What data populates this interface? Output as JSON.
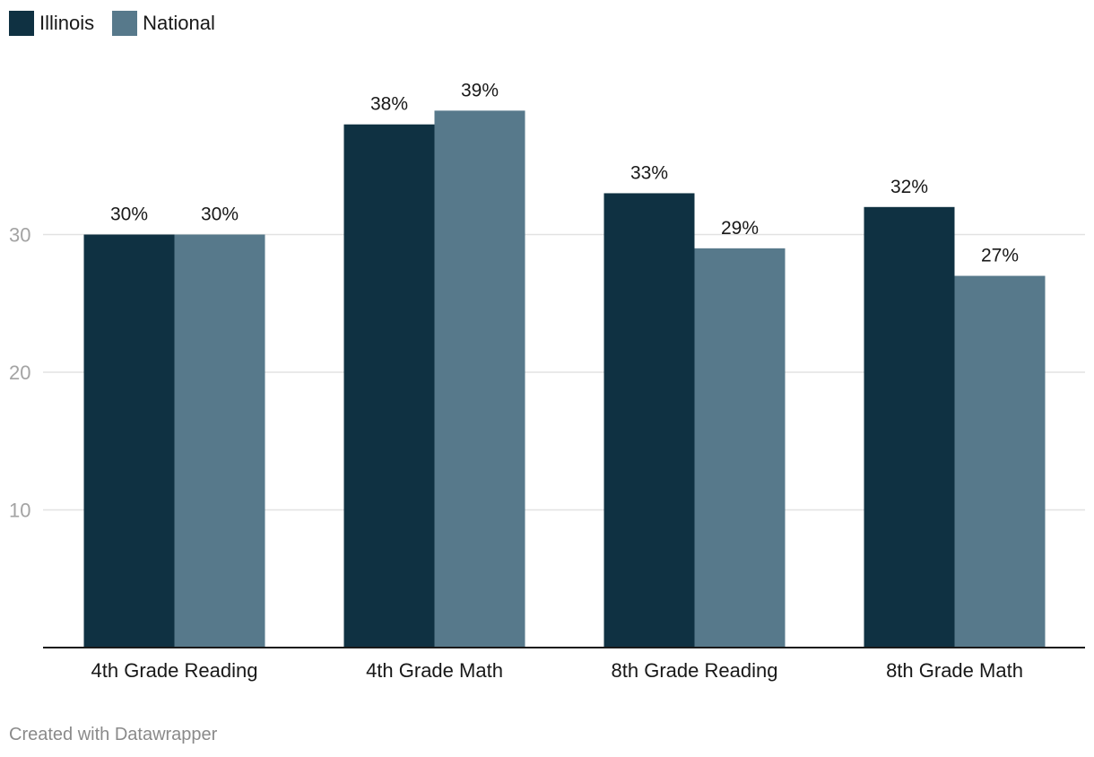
{
  "chart_data": {
    "type": "bar",
    "title": "",
    "xlabel": "",
    "ylabel": "",
    "categories": [
      "4th Grade Reading",
      "4th Grade Math",
      "8th Grade Reading",
      "8th Grade Math"
    ],
    "series": [
      {
        "name": "Illinois",
        "color": "#0f3142",
        "values": [
          30,
          38,
          33,
          32
        ]
      },
      {
        "name": "National",
        "color": "#57798b",
        "values": [
          30,
          39,
          29,
          27
        ]
      }
    ],
    "value_suffix": "%",
    "ylim": [
      0,
      39
    ],
    "yticks": [
      10,
      20,
      30
    ],
    "grid": true,
    "legend": "top-left"
  },
  "footer": {
    "credit": "Created with Datawrapper"
  }
}
